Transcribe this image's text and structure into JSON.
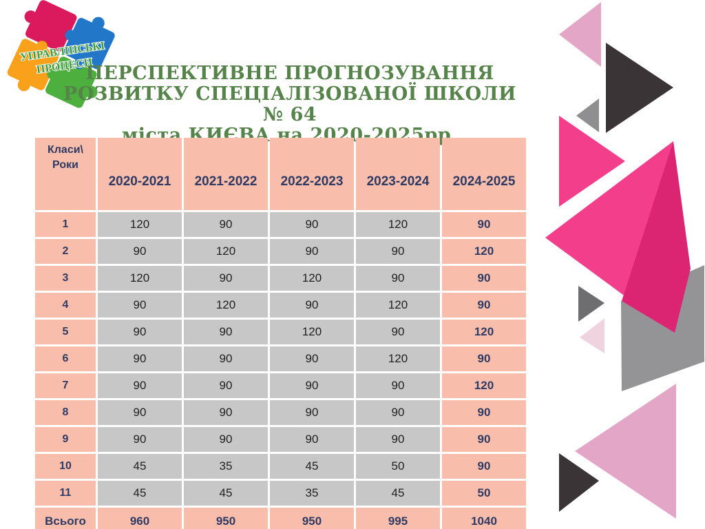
{
  "logo": {
    "text_line1": "УПРАВЛІНСЬКІ",
    "text_line2": "ПРОЦЕСИ",
    "colors": {
      "blue": "#2277C8",
      "crimson": "#DB1A5E",
      "green": "#4CAF3E",
      "yellow": "#F9A11B",
      "text_green": "#3E9C3E"
    }
  },
  "title": {
    "lines": [
      "ПЕРСПЕКТИВНЕ ПРОГНОЗУВАННЯ",
      "РОЗВИТКУ СПЕЦІАЛІЗОВАНОЇ ШКОЛИ № 64",
      "міста КИЄВА на 2020-2025рр."
    ],
    "color": "#55834A"
  },
  "table": {
    "corner_line1": "Класи\\",
    "corner_line2": "Роки",
    "year_columns": [
      "2020-2021",
      "2021-2022",
      "2022-2023",
      "2023-2024",
      "2024-2025"
    ],
    "rows": [
      {
        "label": "1",
        "values": [
          "120",
          "90",
          "90",
          "120",
          "90"
        ]
      },
      {
        "label": "2",
        "values": [
          "90",
          "120",
          "90",
          "90",
          "120"
        ]
      },
      {
        "label": "3",
        "values": [
          "120",
          "90",
          "120",
          "90",
          "90"
        ]
      },
      {
        "label": "4",
        "values": [
          "90",
          "120",
          "90",
          "120",
          "90"
        ]
      },
      {
        "label": "5",
        "values": [
          "90",
          "90",
          "120",
          "90",
          "120"
        ]
      },
      {
        "label": "6",
        "values": [
          "90",
          "90",
          "90",
          "120",
          "90"
        ]
      },
      {
        "label": "7",
        "values": [
          "90",
          "90",
          "90",
          "90",
          "120"
        ]
      },
      {
        "label": "8",
        "values": [
          "90",
          "90",
          "90",
          "90",
          "90"
        ]
      },
      {
        "label": "9",
        "values": [
          "90",
          "90",
          "90",
          "90",
          "90"
        ]
      },
      {
        "label": "10",
        "values": [
          "45",
          "35",
          "45",
          "50",
          "90"
        ]
      },
      {
        "label": "11",
        "values": [
          "45",
          "45",
          "35",
          "45",
          "50"
        ]
      }
    ],
    "total_row": {
      "label": "Всього",
      "values": [
        "960",
        "950",
        "950",
        "995",
        "1040"
      ]
    },
    "colors": {
      "header_bg": "#F8BEAB",
      "cell_bg": "#C7C7C7",
      "accent_text": "#2E3A64",
      "cell_text": "#1F1F1F"
    }
  },
  "decoration": {
    "pink": "#F23E8B",
    "dark_pink": "#DB2573",
    "light_pink": "#E3A6C7",
    "pale_pink": "#EFD4E0",
    "charcoal": "#3A3436",
    "gray": "#949496",
    "mid_gray": "#8F8F91",
    "dim_gray": "#6E6E70"
  }
}
